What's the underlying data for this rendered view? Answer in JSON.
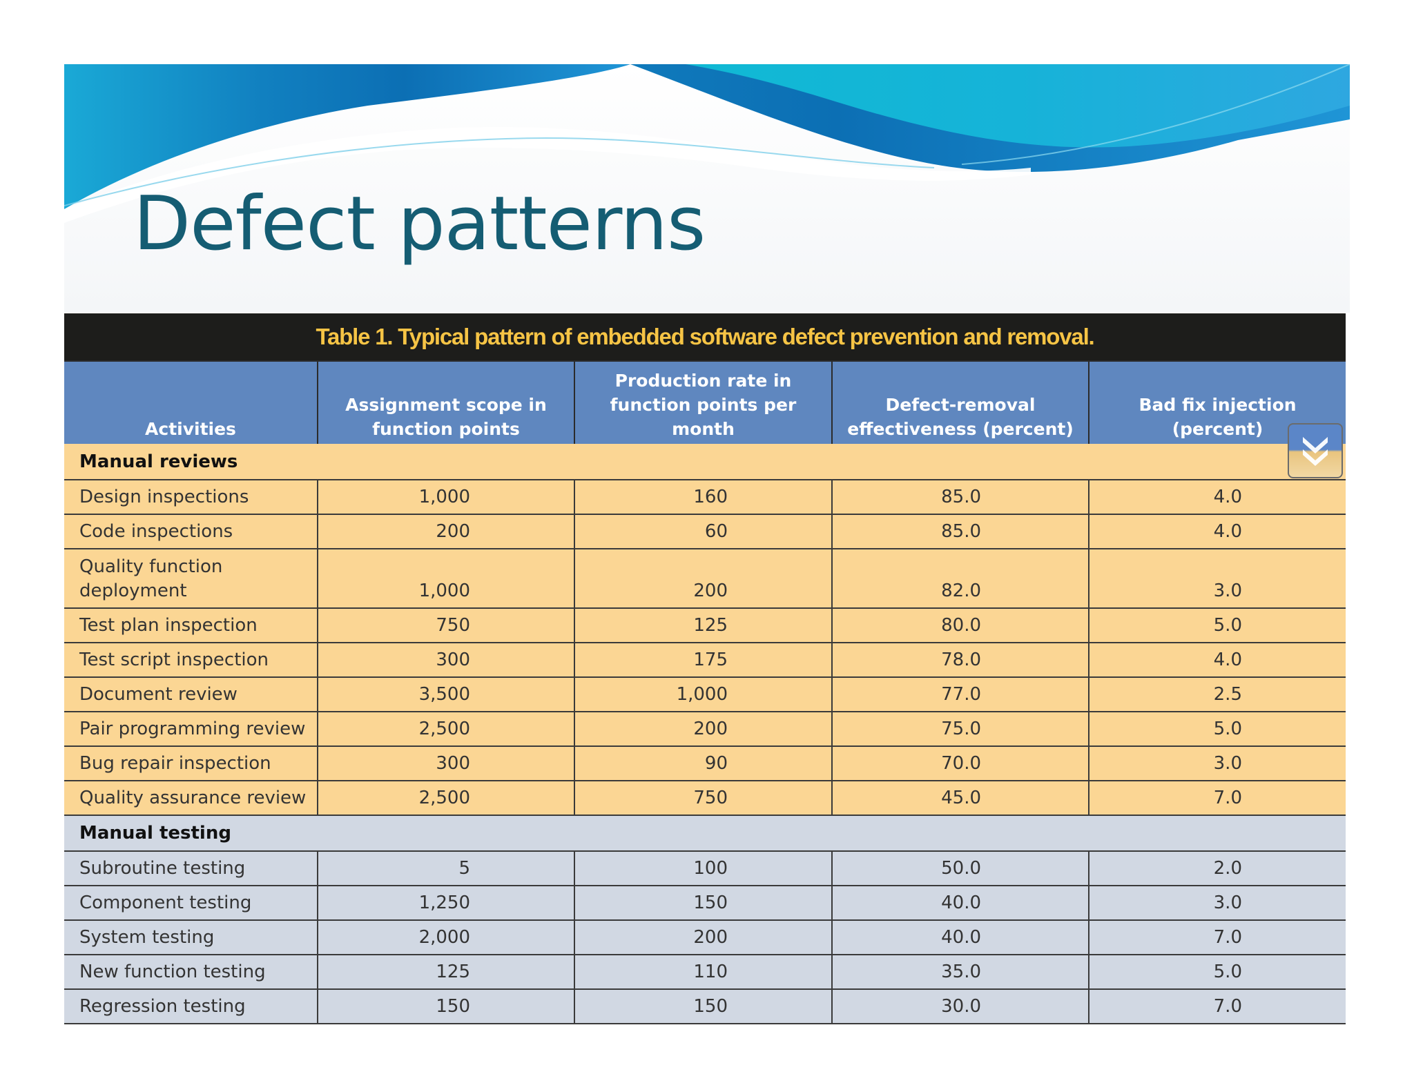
{
  "slide": {
    "title": "Defect patterns"
  },
  "table": {
    "caption": "Table 1. Typical pattern of embedded software defect prevention and removal.",
    "headers": [
      "Activities",
      "Assignment scope in function points",
      "Production rate in function points per month",
      "Defect-removal effectiveness (percent)",
      "Bad fix injection (percent)"
    ],
    "sections": [
      {
        "name": "Manual reviews",
        "rows": [
          [
            "Design inspections",
            "1,000",
            "160",
            "85.0",
            "4.0"
          ],
          [
            "Code inspections",
            "200",
            "60",
            "85.0",
            "4.0"
          ],
          [
            "Quality function deployment",
            "1,000",
            "200",
            "82.0",
            "3.0"
          ],
          [
            "Test plan inspection",
            "750",
            "125",
            "80.0",
            "5.0"
          ],
          [
            "Test script inspection",
            "300",
            "175",
            "78.0",
            "4.0"
          ],
          [
            "Document review",
            "3,500",
            "1,000",
            "77.0",
            "2.5"
          ],
          [
            "Pair programming review",
            "2,500",
            "200",
            "75.0",
            "5.0"
          ],
          [
            "Bug repair inspection",
            "300",
            "90",
            "70.0",
            "3.0"
          ],
          [
            "Quality assurance review",
            "2,500",
            "750",
            "45.0",
            "7.0"
          ]
        ]
      },
      {
        "name": "Manual testing",
        "rows": [
          [
            "Subroutine testing",
            "5",
            "100",
            "50.0",
            "2.0"
          ],
          [
            "Component testing",
            "1,250",
            "150",
            "40.0",
            "3.0"
          ],
          [
            "System testing",
            "2,000",
            "200",
            "40.0",
            "7.0"
          ],
          [
            "New function testing",
            "125",
            "110",
            "35.0",
            "5.0"
          ],
          [
            "Regression testing",
            "150",
            "150",
            "30.0",
            "7.0"
          ]
        ]
      }
    ]
  },
  "icons": {
    "scroll": "double-chevron-down-icon"
  },
  "colors": {
    "title": "#155d73",
    "caption_bg": "#1d1d1b",
    "caption_text": "#f6c445",
    "header_bg": "#5f87bf",
    "reviews_bg": "#fbd694",
    "testing_bg": "#d1d8e3"
  }
}
